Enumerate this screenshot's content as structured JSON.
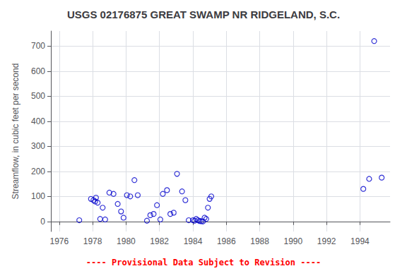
{
  "chart_data": {
    "type": "scatter",
    "title": "USGS 02176875 GREAT SWAMP NR RIDGELAND, S.C.",
    "ylabel": "Streamflow, in cubic feet per second",
    "annotations": [
      {
        "text": "---- Provisional Data Subject to Revision ----",
        "color": "#ff0000"
      }
    ],
    "x": [
      1977.2,
      1977.9,
      1978.05,
      1978.15,
      1978.2,
      1978.3,
      1978.45,
      1978.6,
      1978.75,
      1979.0,
      1979.25,
      1979.5,
      1979.7,
      1979.85,
      1980.05,
      1980.25,
      1980.5,
      1980.7,
      1981.25,
      1981.45,
      1981.65,
      1981.85,
      1982.05,
      1982.2,
      1982.45,
      1982.65,
      1982.85,
      1983.05,
      1983.35,
      1983.55,
      1983.75,
      1984.0,
      1984.1,
      1984.2,
      1984.3,
      1984.4,
      1984.5,
      1984.6,
      1984.7,
      1984.8,
      1984.9,
      1985.0,
      1985.1,
      1994.2,
      1994.55,
      1994.85,
      1995.3
    ],
    "values": [
      5,
      90,
      85,
      80,
      95,
      75,
      10,
      55,
      8,
      115,
      110,
      70,
      40,
      15,
      105,
      100,
      165,
      105,
      3,
      25,
      30,
      65,
      8,
      110,
      125,
      30,
      35,
      190,
      120,
      85,
      5,
      5,
      3,
      10,
      5,
      2,
      1,
      0,
      15,
      10,
      55,
      90,
      100,
      130,
      170,
      720,
      175
    ],
    "color": "#0000cc",
    "marker": "circle",
    "xlim": [
      1975.5,
      1995.8
    ],
    "ylim": [
      -40,
      760
    ],
    "xticks": [
      1976,
      1978,
      1980,
      1982,
      1984,
      1986,
      1988,
      1990,
      1992,
      1994
    ],
    "yticks": [
      0,
      100,
      200,
      300,
      400,
      500,
      600,
      700
    ],
    "grid": true
  }
}
